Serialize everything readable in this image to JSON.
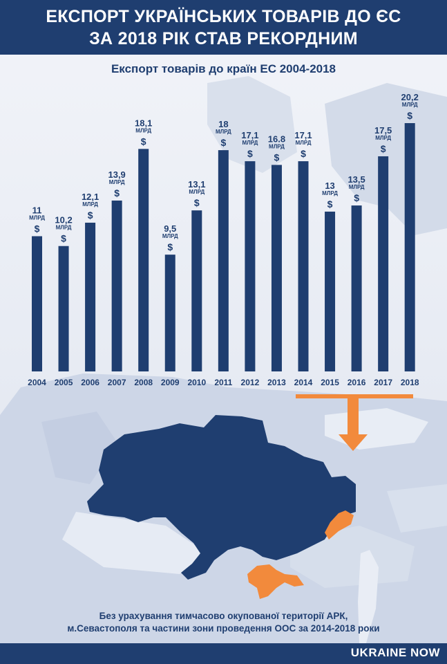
{
  "header": {
    "title_line1": "ЕКСПОРТ УКРАЇНСЬКИХ ТОВАРІВ ДО ЄС",
    "title_line2": "ЗА 2018 РІК СТАВ РЕКОРДНИМ"
  },
  "chart_data": {
    "type": "bar",
    "title": "Експорт товарів до країн ЕС 2004-2018",
    "categories": [
      "2004",
      "2005",
      "2006",
      "2007",
      "2008",
      "2009",
      "2010",
      "2011",
      "2012",
      "2013",
      "2014",
      "2015",
      "2016",
      "2017",
      "2018"
    ],
    "values": [
      11,
      10.2,
      12.1,
      13.9,
      18.1,
      9.5,
      13.1,
      18,
      17.1,
      16.8,
      17.1,
      13,
      13.5,
      17.5,
      20.2
    ],
    "value_labels": [
      "11",
      "10,2",
      "12,1",
      "13,9",
      "18,1",
      "9,5",
      "13,1",
      "18",
      "17,1",
      "16.8",
      "17,1",
      "13",
      "13,5",
      "17,5",
      "20,2"
    ],
    "unit_label": "МЛРД",
    "currency_symbol": "$",
    "bar_color": "#1f3e70",
    "label_color": "#1f3e70"
  },
  "footnote": {
    "line1": "Без урахування тимчасово окупованої території АРК,",
    "line2": "м.Севастополя та частини зони проведення ООС за 2014-2018 роки"
  },
  "colors": {
    "navy": "#1f3e70",
    "orange": "#f28a3c",
    "map_land": "#c8d2e4"
  },
  "logo": {
    "text": "UKRAINE NOW"
  }
}
